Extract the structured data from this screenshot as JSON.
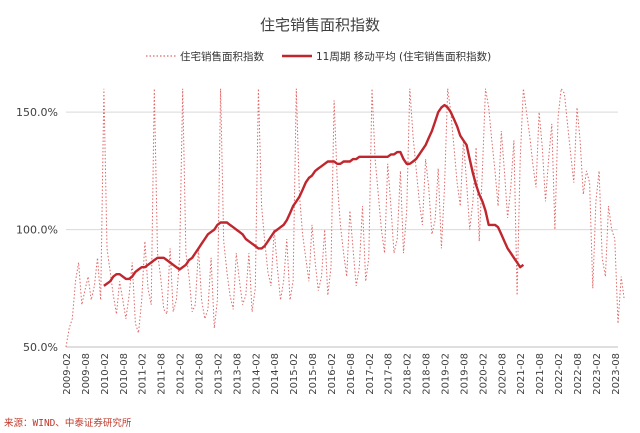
{
  "chart_data": {
    "type": "line",
    "title": "住宅销售面积指数",
    "y_ticks": [
      "50.0%",
      "100.0%",
      "150.0%"
    ],
    "y_tick_values": [
      50,
      100,
      150
    ],
    "ylim": [
      50,
      162
    ],
    "x_ticks": [
      "2009-02",
      "2009-08",
      "2010-02",
      "2010-08",
      "2011-02",
      "2011-08",
      "2012-02",
      "2012-08",
      "2013-02",
      "2013-08",
      "2014-02",
      "2014-08",
      "2015-02",
      "2015-08",
      "2016-02",
      "2016-08",
      "2017-02",
      "2017-08",
      "2018-02",
      "2018-08",
      "2019-02",
      "2019-08",
      "2020-02",
      "2020-08",
      "2021-02",
      "2021-08",
      "2022-02",
      "2022-08",
      "2023-02",
      "2023-08"
    ],
    "xlim": [
      0,
      175
    ],
    "legend_position": "top-center",
    "series": [
      {
        "name": "住宅销售面积指数",
        "style": "dotted",
        "color": "#e06666",
        "values": [
          50,
          58,
          62,
          78,
          86,
          68,
          74,
          80,
          70,
          76,
          88,
          70,
          160,
          92,
          82,
          72,
          64,
          78,
          70,
          62,
          72,
          86,
          60,
          56,
          70,
          95,
          75,
          68,
          160,
          90,
          80,
          66,
          64,
          92,
          65,
          70,
          88,
          160,
          90,
          80,
          65,
          68,
          92,
          70,
          62,
          66,
          88,
          58,
          70,
          160,
          95,
          82,
          72,
          66,
          90,
          78,
          68,
          72,
          90,
          65,
          75,
          160,
          110,
          95,
          82,
          76,
          100,
          84,
          70,
          78,
          96,
          70,
          78,
          160,
          115,
          98,
          88,
          78,
          102,
          86,
          74,
          80,
          100,
          72,
          84,
          155,
          120,
          102,
          90,
          80,
          108,
          92,
          76,
          84,
          110,
          78,
          88,
          160,
          130,
          115,
          100,
          90,
          128,
          110,
          90,
          96,
          125,
          90,
          108,
          160,
          140,
          126,
          112,
          102,
          130,
          118,
          98,
          104,
          126,
          92,
          118,
          160,
          150,
          135,
          120,
          110,
          138,
          120,
          100,
          112,
          135,
          95,
          125,
          160,
          152,
          138,
          125,
          110,
          142,
          125,
          105,
          118,
          138,
          72,
          130,
          160,
          150,
          140,
          128,
          118,
          150,
          135,
          112,
          130,
          145,
          100,
          148,
          160,
          158,
          145,
          132,
          120,
          152,
          138,
          115,
          125,
          120,
          75,
          112,
          125,
          88,
          80,
          110,
          100,
          96,
          60,
          80,
          70
        ],
        "visible_count": 176
      },
      {
        "name": "11周期 移动平均 (住宅销售面积指数)",
        "style": "solid",
        "color": "#c0262d",
        "start_index": 12,
        "values": [
          76,
          77,
          78,
          80,
          81,
          81,
          80,
          79,
          79,
          80,
          82,
          83,
          84,
          84,
          85,
          86,
          87,
          88,
          88,
          88,
          87,
          86,
          85,
          84,
          83,
          84,
          85,
          87,
          88,
          90,
          92,
          94,
          96,
          98,
          99,
          100,
          102,
          103,
          103,
          103,
          102,
          101,
          100,
          99,
          98,
          96,
          95,
          94,
          93,
          92,
          92,
          93,
          95,
          97,
          99,
          100,
          101,
          102,
          104,
          107,
          110,
          112,
          114,
          117,
          120,
          122,
          123,
          125,
          126,
          127,
          128,
          129,
          129,
          129,
          128,
          128,
          129,
          129,
          129,
          130,
          130,
          131,
          131,
          131,
          131,
          131,
          131,
          131,
          131,
          131,
          131,
          132,
          132,
          133,
          133,
          130,
          128,
          128,
          129,
          130,
          132,
          134,
          136,
          139,
          142,
          146,
          150,
          152,
          153,
          152,
          150,
          147,
          144,
          140,
          138,
          136,
          130,
          124,
          119,
          115,
          112,
          108,
          102,
          102,
          102,
          101,
          98,
          95,
          92,
          90,
          88,
          86,
          84,
          85
        ]
      }
    ]
  },
  "source_text": "来源：WIND、中泰证券研究所"
}
